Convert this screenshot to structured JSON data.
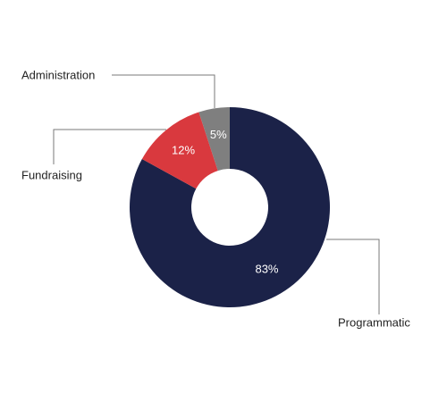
{
  "chart_data": {
    "type": "pie",
    "variant": "donut",
    "title": "",
    "categories": [
      "Programmatic",
      "Fundraising",
      "Administration"
    ],
    "values": [
      83,
      12,
      5
    ],
    "value_labels": [
      "83%",
      "12%",
      "5%"
    ],
    "colors": [
      "#1b2248",
      "#d9393e",
      "#7f7f7f"
    ],
    "legend": "none",
    "data_labels": "inside slices",
    "category_labels": "outside with leader lines"
  }
}
